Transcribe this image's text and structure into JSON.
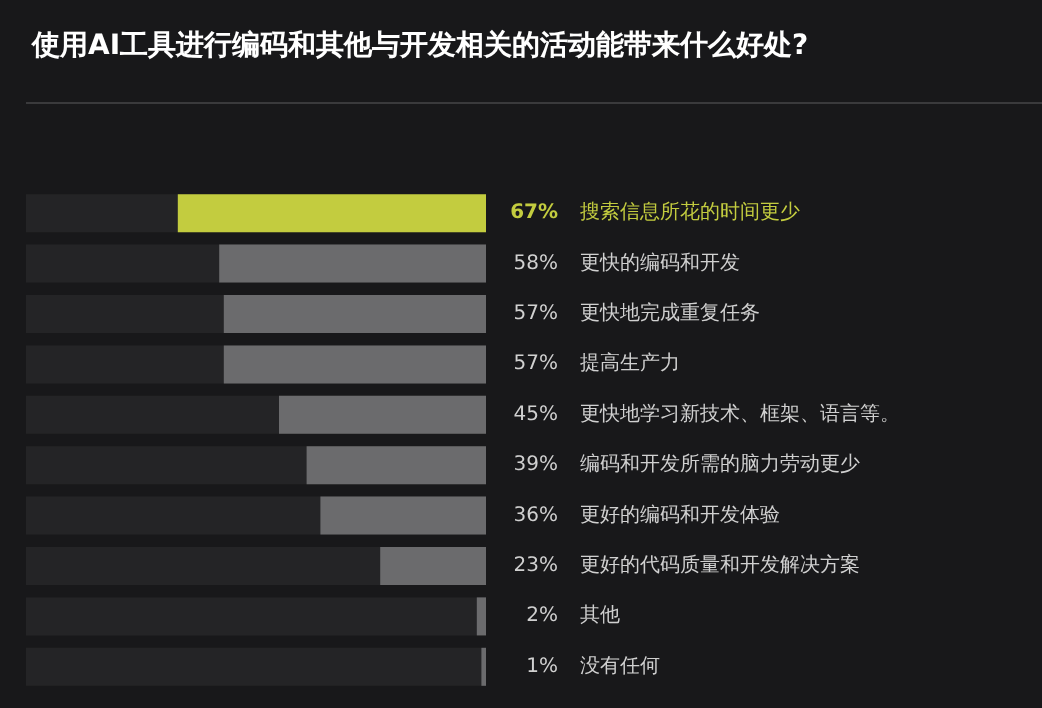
{
  "chart_data": {
    "type": "bar",
    "orientation": "horizontal",
    "title": "使用AI工具进行编码和其他与开发相关的活动能带来什么好处?",
    "categories": [
      "搜索信息所花的时间更少",
      "更快的编码和开发",
      "更快地完成重复任务",
      "提高生产力",
      "更快地学习新技术、框架、语言等。",
      "编码和开发所需的脑力劳动更少",
      "更好的编码和开发体验",
      "更好的代码质量和开发解决方案",
      "其他",
      "没有任何"
    ],
    "values": [
      67,
      58,
      57,
      57,
      45,
      39,
      36,
      23,
      2,
      1
    ],
    "value_labels": [
      "67%",
      "58%",
      "57%",
      "57%",
      "45%",
      "39%",
      "36%",
      "23%",
      "2%",
      "1%"
    ],
    "colors": [
      "#c3cc3f",
      "#6b6b6d",
      "#6b6b6d",
      "#6b6b6d",
      "#6b6b6d",
      "#6b6b6d",
      "#6b6b6d",
      "#6b6b6d",
      "#6b6b6d",
      "#6b6b6d"
    ],
    "xlim": [
      100,
      0
    ],
    "tick_labels": "y"
  }
}
